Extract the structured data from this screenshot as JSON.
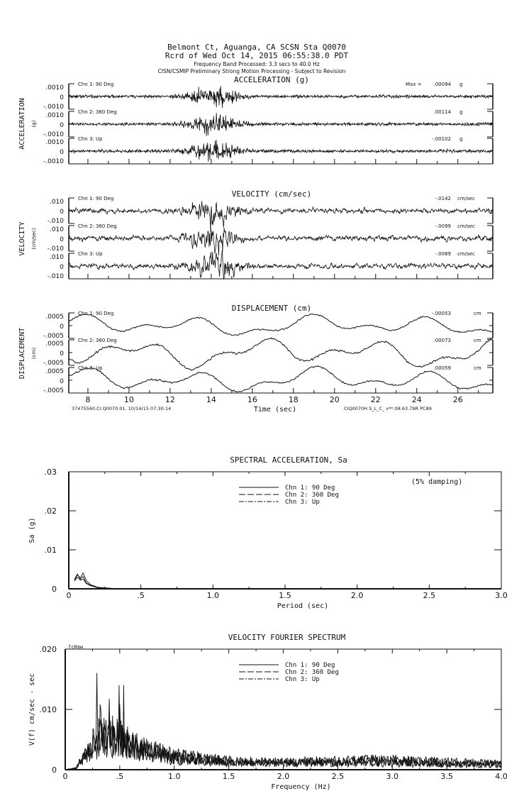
{
  "header": {
    "station_line": "Belmont Ct, Aguanga, CA    SCSN Sta Q0070",
    "record_line": "Rcrd of Wed Oct 14, 2015 06:55:38.0 PDT",
    "band_line": "Frequency Band Processed: 3.3 secs to 40.0 Hz",
    "processing_line": "CISN/CSMIP Preliminary Strong Motion Processing - Subject to Revision"
  },
  "time_axis": {
    "ticks": [
      "8",
      "10",
      "12",
      "14",
      "16",
      "18",
      "20",
      "22",
      "24",
      "26"
    ],
    "label": "Time (sec)",
    "footer_left": "37475560.CI.Q0070.01. 10/14/15 07:30:14",
    "footer_right": "CIQ0070H  S_L_C_  v**.08.63.79R PC89"
  },
  "chart_data": [
    {
      "type": "line",
      "title": "ACCELERATION (g)",
      "ylabel": "ACCELERATION",
      "yunit_label": "(g)",
      "ytick_labels": [
        ".0010",
        "0",
        "-.0010"
      ],
      "ylim": [
        -0.001,
        0.001
      ],
      "xlim": [
        7.07,
        27.7
      ],
      "max_prefix": "Max =",
      "series": [
        {
          "name": "Chn 1: 90 Deg",
          "peak_label": ".00094",
          "unit": "g",
          "peak": 0.00094
        },
        {
          "name": "Chn 2: 360 Deg",
          "peak_label": ".00114",
          "unit": "g",
          "peak": 0.00114
        },
        {
          "name": "Chn 3: Up",
          "peak_label": "-.00102",
          "unit": "g",
          "peak": -0.00102
        }
      ]
    },
    {
      "type": "line",
      "title": "VELOCITY (cm/sec)",
      "ylabel": "VELOCITY",
      "yunit_label": "(cm/sec)",
      "ytick_labels": [
        ".010",
        "0",
        "-.010"
      ],
      "ylim": [
        -0.01,
        0.01
      ],
      "xlim": [
        7.07,
        27.7
      ],
      "series": [
        {
          "name": "Chn 1: 90 Deg",
          "peak_label": "-.0142",
          "unit": "cm/sec",
          "peak": -0.0142
        },
        {
          "name": "Chn 2: 360 Deg",
          "peak_label": "-.0099",
          "unit": "cm/sec",
          "peak": -0.0099
        },
        {
          "name": "Chn 3: Up",
          "peak_label": "-.0089",
          "unit": "cm/sec",
          "peak": -0.0089
        }
      ]
    },
    {
      "type": "line",
      "title": "DISPLACEMENT (cm)",
      "ylabel": "DISPLACEMENT",
      "yunit_label": "(cm)",
      "ytick_labels": [
        ".0005",
        "0",
        "-.0005"
      ],
      "ylim": [
        -0.0005,
        0.0005
      ],
      "xlim": [
        7.07,
        27.7
      ],
      "series": [
        {
          "name": "Chn 1: 90 Deg",
          "peak_label": "-.00053",
          "unit": "cm",
          "peak": -0.00053
        },
        {
          "name": "Chn 2: 360 Deg",
          "peak_label": ".00073",
          "unit": "cm",
          "peak": 0.00073
        },
        {
          "name": "Chn 3: Up",
          "peak_label": ".00059",
          "unit": "cm",
          "peak": 0.00059
        }
      ]
    },
    {
      "type": "line",
      "title": "SPECTRAL ACCELERATION, Sa",
      "xlabel": "Period (sec)",
      "ylabel": "Sa (g)",
      "annotation": "(5% damping)",
      "xlim": [
        0,
        3.0
      ],
      "ylim": [
        0,
        0.03
      ],
      "xtick_labels": [
        "0",
        ".5",
        "1.0",
        "1.5",
        "2.0",
        "2.5",
        "3.0"
      ],
      "ytick_labels": [
        "0",
        ".01",
        ".02",
        ".03"
      ],
      "legend": "top-center",
      "series": [
        {
          "name": "Chn 1: 90 Deg",
          "style": "solid",
          "x": [
            0.04,
            0.06,
            0.08,
            0.1,
            0.12,
            0.15,
            0.2,
            0.3,
            0.5
          ],
          "y": [
            0.0022,
            0.0036,
            0.0028,
            0.0041,
            0.0022,
            0.0011,
            0.0004,
            0.0001,
            3e-05
          ]
        },
        {
          "name": "Chn 2: 360 Deg",
          "style": "dashed",
          "x": [
            0.04,
            0.06,
            0.08,
            0.1,
            0.12,
            0.15,
            0.2,
            0.3,
            0.5
          ],
          "y": [
            0.0025,
            0.0038,
            0.0024,
            0.0032,
            0.0016,
            0.0009,
            0.0003,
            0.0001,
            2e-05
          ]
        },
        {
          "name": "Chn 3: Up",
          "style": "dashdot",
          "x": [
            0.04,
            0.06,
            0.08,
            0.1,
            0.12,
            0.15,
            0.2,
            0.3,
            0.5
          ],
          "y": [
            0.002,
            0.003,
            0.0022,
            0.0025,
            0.0014,
            0.0008,
            0.0003,
            0.0001,
            2e-05
          ]
        }
      ]
    },
    {
      "type": "line",
      "title": "VELOCITY FOURIER SPECTRUM",
      "corner_label": "fcHaw",
      "xlabel": "Frequency (Hz)",
      "ylabel": "V(f)   cm/sec - sec",
      "xlim": [
        0,
        4.0
      ],
      "ylim": [
        0,
        0.02
      ],
      "xtick_labels": [
        "0",
        ".5",
        "1.0",
        "1.5",
        "2.0",
        "2.5",
        "3.0",
        "3.5",
        "4.0"
      ],
      "ytick_labels": [
        "0",
        ".010",
        ".020"
      ],
      "legend": "top-center",
      "series": [
        {
          "name": "Chn 1: 90 Deg",
          "style": "solid",
          "envelope_x": [
            0,
            0.1,
            0.2,
            0.35,
            0.5,
            0.7,
            1.0,
            1.5,
            2.0,
            2.5,
            3.0,
            3.5,
            4.0
          ],
          "envelope_y": [
            0,
            0.0003,
            0.003,
            0.0055,
            0.005,
            0.0038,
            0.0025,
            0.0016,
            0.0014,
            0.0016,
            0.0018,
            0.0014,
            0.0012
          ]
        },
        {
          "name": "Chn 2: 360 Deg",
          "style": "dashed",
          "envelope_x": [
            0,
            0.1,
            0.2,
            0.35,
            0.5,
            0.7,
            1.0,
            1.5,
            2.0,
            2.5,
            3.0,
            3.5,
            4.0
          ],
          "envelope_y": [
            0,
            0.0003,
            0.0035,
            0.007,
            0.006,
            0.004,
            0.0025,
            0.0015,
            0.0013,
            0.0014,
            0.0016,
            0.0013,
            0.001
          ]
        },
        {
          "name": "Chn 3: Up",
          "style": "dashdot",
          "envelope_x": [
            0,
            0.1,
            0.2,
            0.35,
            0.5,
            0.7,
            1.0,
            1.5,
            2.0,
            2.5,
            3.0,
            3.5,
            4.0
          ],
          "envelope_y": [
            0,
            0.0003,
            0.003,
            0.0065,
            0.0055,
            0.0035,
            0.0022,
            0.0013,
            0.0012,
            0.0012,
            0.0012,
            0.001,
            0.0008
          ]
        }
      ]
    }
  ]
}
